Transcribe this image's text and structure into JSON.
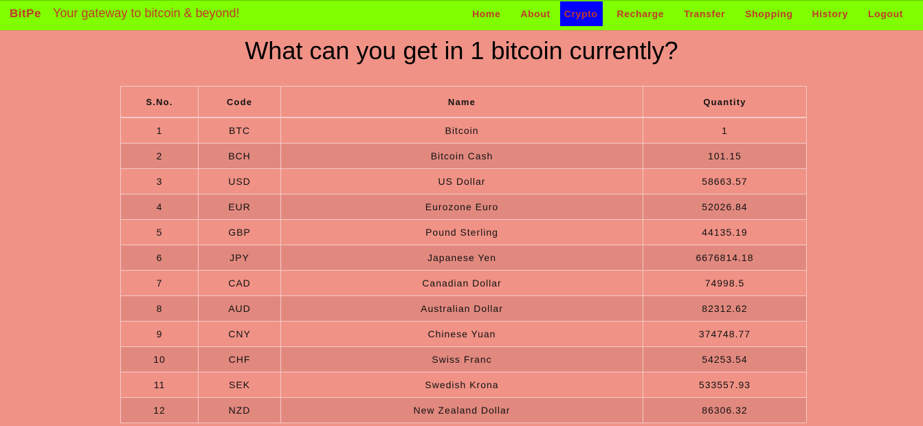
{
  "brand": "BitPe",
  "tagline": "Your gateway to bitcoin & beyond!",
  "nav": [
    {
      "label": "Home",
      "active": false
    },
    {
      "label": "About",
      "active": false
    },
    {
      "label": "Crypto",
      "active": true
    },
    {
      "label": "Recharge",
      "active": false
    },
    {
      "label": "Transfer",
      "active": false
    },
    {
      "label": "Shopping",
      "active": false
    },
    {
      "label": "History",
      "active": false
    },
    {
      "label": "Logout",
      "active": false
    }
  ],
  "colors": {
    "navbar_bg": "#80ff00",
    "page_bg": "#f09286",
    "nav_text": "#c0392b",
    "active_bg": "#0000ff",
    "row_stripe": "#e2897f"
  },
  "title": "What can you get in 1 bitcoin currently?",
  "table": {
    "headers": [
      "S.No.",
      "Code",
      "Name",
      "Quantity"
    ],
    "rows": [
      [
        "1",
        "BTC",
        "Bitcoin",
        "1"
      ],
      [
        "2",
        "BCH",
        "Bitcoin Cash",
        "101.15"
      ],
      [
        "3",
        "USD",
        "US Dollar",
        "58663.57"
      ],
      [
        "4",
        "EUR",
        "Eurozone Euro",
        "52026.84"
      ],
      [
        "5",
        "GBP",
        "Pound Sterling",
        "44135.19"
      ],
      [
        "6",
        "JPY",
        "Japanese Yen",
        "6676814.18"
      ],
      [
        "7",
        "CAD",
        "Canadian Dollar",
        "74998.5"
      ],
      [
        "8",
        "AUD",
        "Australian Dollar",
        "82312.62"
      ],
      [
        "9",
        "CNY",
        "Chinese Yuan",
        "374748.77"
      ],
      [
        "10",
        "CHF",
        "Swiss Franc",
        "54253.54"
      ],
      [
        "11",
        "SEK",
        "Swedish Krona",
        "533557.93"
      ],
      [
        "12",
        "NZD",
        "New Zealand Dollar",
        "86306.32"
      ]
    ]
  }
}
